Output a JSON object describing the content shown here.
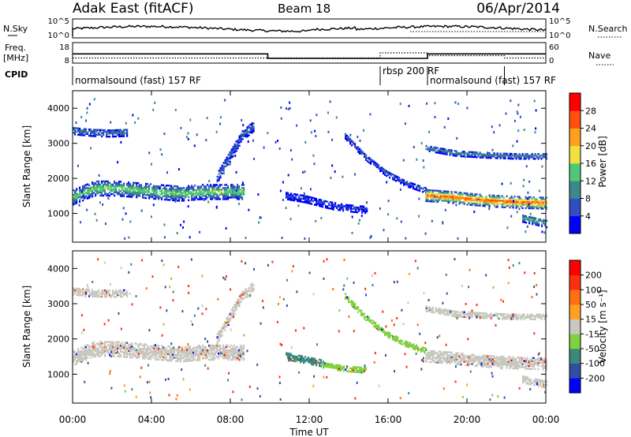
{
  "header": {
    "title": "Adak East (fitACF)",
    "beam": "Beam 18",
    "date": "06/Apr/2014"
  },
  "sky_panel": {
    "left_label": "N.Sky",
    "right_label": "N.Search",
    "ticks_left": [
      "10^5",
      "10^0"
    ],
    "ticks_right": [
      "10^5",
      "10^0"
    ]
  },
  "freq_panel": {
    "left_label_1": "Freq.",
    "left_label_2": "[MHz]",
    "right_label": "Nave",
    "ticks_left": [
      "18",
      "8"
    ],
    "ticks_right": [
      "60",
      "0"
    ],
    "freq_steps": [
      {
        "t0": 0.0,
        "t1": 9.9,
        "value": 12.5
      },
      {
        "t0": 9.9,
        "t1": 18.0,
        "value": 10.3
      },
      {
        "t0": 18.0,
        "t1": 24.0,
        "value": 12.5
      }
    ],
    "nave_steps": [
      {
        "t0": 0.0,
        "t1": 15.6,
        "value": 15
      },
      {
        "t0": 15.6,
        "t1": 18.0,
        "value": 30
      },
      {
        "t0": 18.0,
        "t1": 21.9,
        "value": 22
      },
      {
        "t0": 21.9,
        "t1": 24.0,
        "value": 15
      }
    ]
  },
  "cpid": {
    "label": "CPID",
    "segments": [
      {
        "start": 0.0,
        "end": 15.6,
        "text": "normalsound (fast) 157 RF"
      },
      {
        "start": 15.6,
        "end": 18.0,
        "text": "rbsp 200 RF"
      },
      {
        "start": 18.0,
        "end": 21.9,
        "text": "normalsound (fast) 157 RF"
      }
    ]
  },
  "power_colorbar": {
    "label": "Power [dB]",
    "ticks": [
      "28",
      "24",
      "20",
      "16",
      "12",
      "8",
      "4"
    ],
    "colors": [
      "#0000ff",
      "#2f4fc0",
      "#3a8a8a",
      "#50c878",
      "#f0e040",
      "#ffa020",
      "#ff5010",
      "#ff0000"
    ]
  },
  "velocity_colorbar": {
    "label": "Velocity [m s⁻¹]",
    "ticks": [
      "200",
      "100",
      "50",
      "15",
      "-15",
      "-50",
      "-100",
      "-200"
    ],
    "colors": [
      "#0000ff",
      "#2f4fa0",
      "#3a8a7a",
      "#80d040",
      "#c8c8c0",
      "#ffa020",
      "#ff7010",
      "#ff3010",
      "#ff0000"
    ]
  },
  "chart_data": {
    "type": "heatmap",
    "xlabel": "Time UT",
    "ylabel": "Slant Range [km]",
    "xlim": [
      0,
      24
    ],
    "ylim": [
      180,
      4500
    ],
    "x_ticks": [
      "00:00",
      "04:00",
      "08:00",
      "12:00",
      "16:00",
      "20:00",
      "00:00"
    ],
    "y_ticks": [
      "1000",
      "2000",
      "3000",
      "4000"
    ],
    "power_bands": [
      {
        "t0": 0.0,
        "t1": 8.7,
        "r": [
          1450,
          1700,
          1700,
          1650,
          1600,
          1550,
          1600,
          1600,
          1600
        ],
        "width": 420,
        "peak": 16
      },
      {
        "t0": 0.0,
        "t1": 2.8,
        "r": [
          3350,
          3300,
          3280,
          3300
        ],
        "width": 220,
        "peak": 10
      },
      {
        "t0": 7.3,
        "t1": 9.2,
        "r": [
          2000,
          2600,
          3200,
          3500
        ],
        "width": 300,
        "peak": 8
      },
      {
        "t0": 10.8,
        "t1": 14.9,
        "r": [
          1500,
          1400,
          1250,
          1150,
          1100
        ],
        "width": 220,
        "peak": 6
      },
      {
        "t0": 13.8,
        "t1": 17.9,
        "r": [
          3200,
          2600,
          2150,
          1850,
          1650
        ],
        "width": 180,
        "peak": 7
      },
      {
        "t0": 17.9,
        "t1": 24.0,
        "r": [
          1500,
          1450,
          1380,
          1330,
          1300,
          1280
        ],
        "width": 330,
        "peak": 27
      },
      {
        "t0": 17.9,
        "t1": 24.0,
        "r": [
          2850,
          2700,
          2650,
          2620,
          2620
        ],
        "width": 160,
        "peak": 11
      },
      {
        "t0": 22.8,
        "t1": 24.0,
        "r": [
          850,
          700
        ],
        "width": 220,
        "peak": 14
      }
    ],
    "velocity_bands": [
      {
        "t0": 0.0,
        "t1": 8.7,
        "r": [
          1450,
          1700,
          1700,
          1650,
          1600,
          1550,
          1600,
          1600,
          1600
        ],
        "width": 420,
        "v": 0
      },
      {
        "t0": 0.0,
        "t1": 2.8,
        "r": [
          3350,
          3300,
          3280,
          3300
        ],
        "width": 220,
        "v": 0
      },
      {
        "t0": 7.3,
        "t1": 9.2,
        "r": [
          2000,
          2600,
          3200,
          3500
        ],
        "width": 300,
        "v": 0
      },
      {
        "t0": 10.8,
        "t1": 12.6,
        "r": [
          1500,
          1400,
          1300
        ],
        "width": 200,
        "v": 60
      },
      {
        "t0": 12.6,
        "t1": 14.9,
        "r": [
          1250,
          1150,
          1100
        ],
        "width": 160,
        "v": 25
      },
      {
        "t0": 13.8,
        "t1": 17.9,
        "r": [
          3200,
          2600,
          2150,
          1850,
          1650
        ],
        "width": 160,
        "v": 25
      },
      {
        "t0": 17.9,
        "t1": 24.0,
        "r": [
          1500,
          1450,
          1380,
          1330,
          1300,
          1280
        ],
        "width": 330,
        "v": 0
      },
      {
        "t0": 17.9,
        "t1": 24.0,
        "r": [
          2850,
          2700,
          2650,
          2620,
          2620
        ],
        "width": 160,
        "v": 0
      },
      {
        "t0": 22.8,
        "t1": 24.0,
        "r": [
          850,
          700
        ],
        "width": 220,
        "v": 0
      }
    ]
  }
}
